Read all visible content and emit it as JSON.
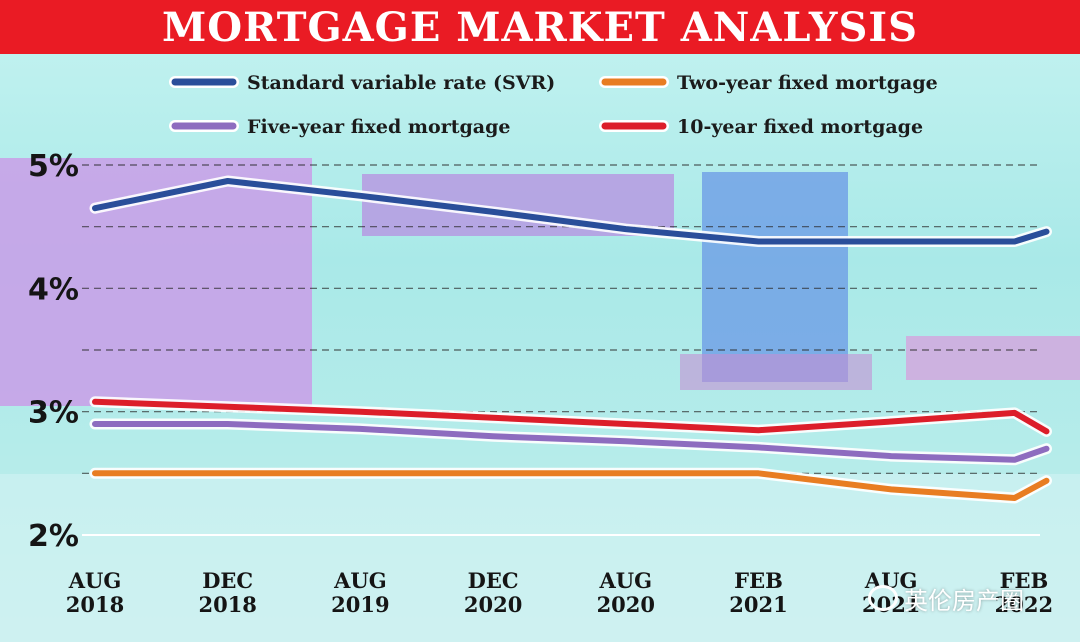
{
  "title": "MORTGAGE MARKET ANALYSIS",
  "colors": {
    "title_bar": "#ea1b24",
    "svr": "#2a4e9a",
    "two_year": "#e87d22",
    "five_year": "#8d6cbf",
    "ten_year": "#dc1e2a"
  },
  "legend": [
    {
      "key": "svr",
      "label": "Standard variable rate (SVR)"
    },
    {
      "key": "two_year",
      "label": "Two-year fixed mortgage"
    },
    {
      "key": "five_year",
      "label": "Five-year fixed mortgage"
    },
    {
      "key": "ten_year",
      "label": "10-year fixed mortgage"
    }
  ],
  "watermark": {
    "text": "英伦房产圈",
    "icon": "wechat-icon"
  },
  "chart_data": {
    "type": "line",
    "title": "MORTGAGE MARKET ANALYSIS",
    "ylim": [
      2,
      5
    ],
    "yticks": [
      "2%",
      "3%",
      "4%",
      "5%"
    ],
    "grid": "dashed horizontal lines every 0.5%",
    "legend_placement": "top",
    "x": [
      "AUG 2018",
      "DEC 2018",
      "AUG 2019",
      "DEC 2020",
      "AUG 2020",
      "FEB 2021",
      "AUG 2021",
      "FEB 2022"
    ],
    "x_labels": [
      {
        "line1": "AUG",
        "line2": "2018"
      },
      {
        "line1": "DEC",
        "line2": "2018"
      },
      {
        "line1": "AUG",
        "line2": "2019"
      },
      {
        "line1": "DEC",
        "line2": "2020"
      },
      {
        "line1": "AUG",
        "line2": "2020"
      },
      {
        "line1": "FEB",
        "line2": "2021"
      },
      {
        "line1": "AUG",
        "line2": "2021"
      },
      {
        "line1": "FEB",
        "line2": "2022"
      }
    ],
    "series": [
      {
        "key": "svr",
        "name": "Standard variable rate (SVR)",
        "points": [
          [
            0,
            4.65
          ],
          [
            1,
            4.87
          ],
          [
            2,
            4.75
          ],
          [
            3,
            4.62
          ],
          [
            4,
            4.48
          ],
          [
            5,
            4.38
          ],
          [
            6,
            4.38
          ],
          [
            6.93,
            4.38
          ],
          [
            7.17,
            4.46
          ]
        ]
      },
      {
        "key": "two_year",
        "name": "Two-year fixed mortgage",
        "points": [
          [
            0,
            2.5
          ],
          [
            1,
            2.5
          ],
          [
            2,
            2.5
          ],
          [
            3,
            2.5
          ],
          [
            4,
            2.5
          ],
          [
            5,
            2.5
          ],
          [
            6,
            2.37
          ],
          [
            6.93,
            2.3
          ],
          [
            7.17,
            2.44
          ]
        ]
      },
      {
        "key": "five_year",
        "name": "Five-year fixed mortgage",
        "points": [
          [
            0,
            2.9
          ],
          [
            1,
            2.9
          ],
          [
            2,
            2.86
          ],
          [
            3,
            2.8
          ],
          [
            4,
            2.76
          ],
          [
            5,
            2.71
          ],
          [
            6,
            2.64
          ],
          [
            6.93,
            2.61
          ],
          [
            7.17,
            2.7
          ]
        ]
      },
      {
        "key": "ten_year",
        "name": "10-year fixed mortgage",
        "points": [
          [
            0,
            3.08
          ],
          [
            1,
            3.04
          ],
          [
            2,
            3.0
          ],
          [
            3,
            2.95
          ],
          [
            4,
            2.9
          ],
          [
            5,
            2.85
          ],
          [
            6,
            2.92
          ],
          [
            6.93,
            2.99
          ],
          [
            7.17,
            2.84
          ]
        ]
      }
    ]
  }
}
